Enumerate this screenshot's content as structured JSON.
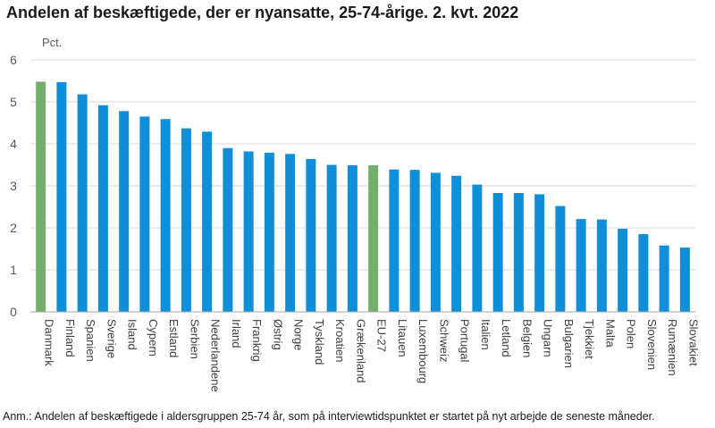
{
  "title": "Andelen af beskæftigede, der er nyansatte, 25-74-årige. 2. kvt. 2022",
  "note": "Anm.: Andelen af beskæftigede i aldersgruppen 25-74 år, som på interviewtidspunktet er startet på nyt arbejde de seneste måneder.",
  "colors": {
    "default": "#0F8FD8",
    "highlight": "#74AE6C",
    "grid": "#D9D9D9",
    "axis": "#A6A6A6"
  },
  "chart_data": {
    "type": "bar",
    "title": "Andelen af beskæftigede, der er nyansatte, 25-74-årige. 2. kvt. 2022",
    "xlabel": "",
    "ylabel": "Pct.",
    "ylim": [
      0,
      6
    ],
    "yticks": [
      "0",
      "1",
      "2",
      "3",
      "4",
      "5",
      "6"
    ],
    "grid": true,
    "categories": [
      "Danmark",
      "Finland",
      "Spanien",
      "Sverige",
      "Island",
      "Cypern",
      "Estland",
      "Serbien",
      "Nederlandene",
      "Irland",
      "Frankrig",
      "Østrig",
      "Norge",
      "Tyskland",
      "Kroatien",
      "Grækenland",
      "EU-27",
      "Litauen",
      "Luxembourg",
      "Schweiz",
      "Portugal",
      "Italien",
      "Letland",
      "Belgien",
      "Ungarn",
      "Bulgarien",
      "Tjekkiet",
      "Malta",
      "Polen",
      "Slovenien",
      "Rumænien",
      "Slovakiet"
    ],
    "values": [
      5.48,
      5.47,
      5.18,
      4.92,
      4.78,
      4.65,
      4.59,
      4.37,
      4.29,
      3.9,
      3.82,
      3.79,
      3.76,
      3.64,
      3.5,
      3.49,
      3.49,
      3.39,
      3.38,
      3.31,
      3.24,
      3.03,
      2.83,
      2.83,
      2.8,
      2.52,
      2.21,
      2.2,
      1.98,
      1.85,
      1.58,
      1.53
    ],
    "highlighted": [
      "Danmark",
      "EU-27"
    ]
  }
}
